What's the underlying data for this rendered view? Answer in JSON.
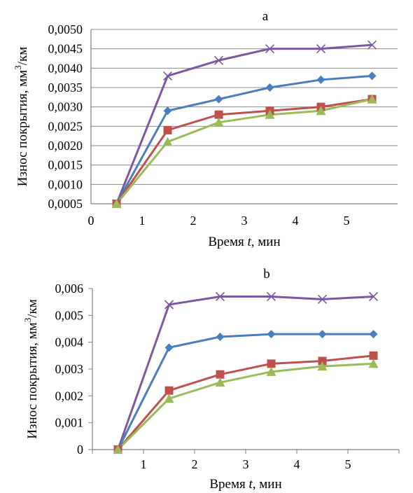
{
  "chart_data": [
    {
      "type": "line",
      "title": "a",
      "xlabel": "Время t, мин",
      "ylabel": "Износ покрытия, мм3/км",
      "xlim": [
        0,
        6
      ],
      "ylim": [
        0.0005,
        0.005
      ],
      "x_ticks": [
        "0",
        "1",
        "2",
        "3",
        "4",
        "5"
      ],
      "y_ticks": [
        "0,0005",
        "0,0010",
        "0,0015",
        "0,0020",
        "0,0025",
        "0,0030",
        "0,0035",
        "0,0040",
        "0,0045",
        "0,0050"
      ],
      "grid": "horizontal",
      "x": [
        0.5,
        1.5,
        2.5,
        3.5,
        4.5,
        5.5
      ],
      "series": [
        {
          "marker": "cross",
          "color": "#7e57a3",
          "values": [
            0.0005,
            0.0038,
            0.0042,
            0.0045,
            0.0045,
            0.0046
          ]
        },
        {
          "marker": "diamond",
          "color": "#4a7ebf",
          "values": [
            0.0005,
            0.0029,
            0.0032,
            0.0035,
            0.0037,
            0.0038
          ]
        },
        {
          "marker": "square",
          "color": "#c0504d",
          "values": [
            0.0005,
            0.0024,
            0.0028,
            0.0029,
            0.003,
            0.0032
          ]
        },
        {
          "marker": "triangle",
          "color": "#9bbb59",
          "values": [
            0.0005,
            0.0021,
            0.0026,
            0.0028,
            0.0029,
            0.0032
          ]
        }
      ]
    },
    {
      "type": "line",
      "title": "b",
      "xlabel": "Время t, мин",
      "ylabel": "Износ покрытия, мм3/км",
      "xlim": [
        0,
        6
      ],
      "ylim": [
        0,
        0.006
      ],
      "x_ticks": [
        "1",
        "2",
        "3",
        "4",
        "5"
      ],
      "y_ticks": [
        "0",
        "0,001",
        "0,002",
        "0,003",
        "0,004",
        "0,005",
        "0,006"
      ],
      "grid": "none",
      "x": [
        0.5,
        1.5,
        2.5,
        3.5,
        4.5,
        5.5
      ],
      "series": [
        {
          "marker": "cross",
          "color": "#7e57a3",
          "values": [
            0,
            0.0054,
            0.0057,
            0.0057,
            0.0056,
            0.0057
          ]
        },
        {
          "marker": "diamond",
          "color": "#4a7ebf",
          "values": [
            0,
            0.0038,
            0.0042,
            0.0043,
            0.0043,
            0.0043
          ]
        },
        {
          "marker": "square",
          "color": "#c0504d",
          "values": [
            0,
            0.0022,
            0.0028,
            0.0032,
            0.0033,
            0.0035
          ]
        },
        {
          "marker": "triangle",
          "color": "#9bbb59",
          "values": [
            0,
            0.0019,
            0.0025,
            0.0029,
            0.0031,
            0.0032
          ]
        }
      ]
    }
  ]
}
